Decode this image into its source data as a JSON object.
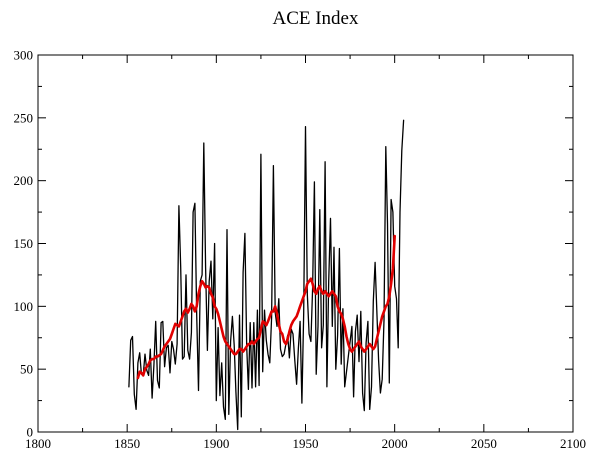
{
  "chart_data": {
    "type": "line",
    "title": "ACE Index",
    "xlabel": "",
    "ylabel": "",
    "xlim": [
      1800,
      2100
    ],
    "ylim": [
      0,
      300
    ],
    "x_ticks": [
      1800,
      1850,
      1900,
      1950,
      2000,
      2050,
      2100
    ],
    "y_ticks": [
      0,
      50,
      100,
      150,
      200,
      250,
      300
    ],
    "x_tick_labels": [
      "1800",
      "1850",
      "1900",
      "1950",
      "2000",
      "2050",
      "2100"
    ],
    "y_tick_labels": [
      "0",
      "50",
      "100",
      "150",
      "200",
      "250",
      "300"
    ],
    "grid": false,
    "legend": "none",
    "series": [
      {
        "color": "#000000",
        "x": [
          1851,
          1852,
          1853,
          1854,
          1855,
          1856,
          1857,
          1858,
          1859,
          1860,
          1861,
          1862,
          1863,
          1864,
          1865,
          1866,
          1867,
          1868,
          1869,
          1870,
          1871,
          1872,
          1873,
          1874,
          1875,
          1876,
          1877,
          1878,
          1879,
          1880,
          1881,
          1882,
          1883,
          1884,
          1885,
          1886,
          1887,
          1888,
          1889,
          1890,
          1891,
          1892,
          1893,
          1894,
          1895,
          1896,
          1897,
          1898,
          1899,
          1900,
          1901,
          1902,
          1903,
          1904,
          1905,
          1906,
          1907,
          1908,
          1909,
          1910,
          1911,
          1912,
          1913,
          1914,
          1915,
          1916,
          1917,
          1918,
          1919,
          1920,
          1921,
          1922,
          1923,
          1924,
          1925,
          1926,
          1927,
          1928,
          1929,
          1930,
          1931,
          1932,
          1933,
          1934,
          1935,
          1936,
          1937,
          1938,
          1939,
          1940,
          1941,
          1942,
          1943,
          1944,
          1945,
          1946,
          1947,
          1948,
          1949,
          1950,
          1951,
          1952,
          1953,
          1954,
          1955,
          1956,
          1957,
          1958,
          1959,
          1960,
          1961,
          1962,
          1963,
          1964,
          1965,
          1966,
          1967,
          1968,
          1969,
          1970,
          1971,
          1972,
          1973,
          1974,
          1975,
          1976,
          1977,
          1978,
          1979,
          1980,
          1981,
          1982,
          1983,
          1984,
          1985,
          1986,
          1987,
          1988,
          1989,
          1990,
          1991,
          1992,
          1993,
          1994,
          1995,
          1996,
          1997,
          1998,
          1999,
          2000,
          2001,
          2002,
          2003,
          2004,
          2005
        ],
        "values": [
          36,
          73,
          76,
          30,
          18,
          55,
          63,
          46,
          45,
          62,
          49,
          45,
          66,
          27,
          53,
          88,
          41,
          35,
          87,
          88,
          52,
          67,
          69,
          47,
          72,
          66,
          54,
          70,
          180,
          131,
          58,
          60,
          125,
          65,
          58,
          79,
          175,
          182,
          93,
          33,
          120,
          125,
          230,
          131,
          65,
          120,
          136,
          90,
          150,
          25,
          83,
          29,
          55,
          20,
          10,
          161,
          14,
          72,
          92,
          69,
          32,
          2,
          93,
          12,
          127,
          158,
          68,
          34,
          87,
          35,
          87,
          36,
          97,
          37,
          221,
          48,
          97,
          73,
          62,
          55,
          91,
          212,
          95,
          84,
          106,
          66,
          60,
          62,
          70,
          77,
          59,
          82,
          78,
          57,
          38,
          67,
          88,
          23,
          95,
          243,
          110,
          78,
          72,
          114,
          199,
          46,
          84,
          177,
          67,
          85,
          215,
          36,
          120,
          170,
          84,
          147,
          50,
          77,
          146,
          54,
          98,
          36,
          48,
          60,
          72,
          84,
          28,
          80,
          93,
          56,
          96,
          31,
          17,
          71,
          88,
          18,
          36,
          104,
          135,
          97,
          57,
          31,
          42,
          89,
          227,
          166,
          39,
          185,
          175,
          116,
          106,
          67,
          175,
          224,
          248
        ]
      },
      {
        "color": "#e00000",
        "x": [
          1856,
          1857,
          1858,
          1859,
          1860,
          1861,
          1862,
          1863,
          1864,
          1865,
          1866,
          1867,
          1868,
          1869,
          1870,
          1871,
          1872,
          1873,
          1874,
          1875,
          1876,
          1877,
          1878,
          1879,
          1880,
          1881,
          1882,
          1883,
          1884,
          1885,
          1886,
          1887,
          1888,
          1889,
          1890,
          1891,
          1892,
          1893,
          1894,
          1895,
          1896,
          1897,
          1898,
          1899,
          1900,
          1901,
          1902,
          1903,
          1904,
          1905,
          1906,
          1907,
          1908,
          1909,
          1910,
          1911,
          1912,
          1913,
          1914,
          1915,
          1916,
          1917,
          1918,
          1919,
          1920,
          1921,
          1922,
          1923,
          1924,
          1925,
          1926,
          1927,
          1928,
          1929,
          1930,
          1931,
          1932,
          1933,
          1934,
          1935,
          1936,
          1937,
          1938,
          1939,
          1940,
          1941,
          1942,
          1943,
          1944,
          1945,
          1946,
          1947,
          1948,
          1949,
          1950,
          1951,
          1952,
          1953,
          1954,
          1955,
          1956,
          1957,
          1958,
          1959,
          1960,
          1961,
          1962,
          1963,
          1964,
          1965,
          1966,
          1967,
          1968,
          1969,
          1970,
          1971,
          1972,
          1973,
          1974,
          1975,
          1976,
          1977,
          1978,
          1979,
          1980,
          1981,
          1982,
          1983,
          1984,
          1985,
          1986,
          1987,
          1988,
          1989,
          1990,
          1991,
          1992,
          1993,
          1994,
          1995,
          1996,
          1997,
          1998,
          1999,
          2000
        ],
        "values": [
          43,
          48,
          47,
          45,
          50,
          52,
          54,
          57,
          58,
          58,
          60,
          60,
          61,
          62,
          65,
          68,
          70,
          72,
          74,
          78,
          82,
          86,
          85,
          84,
          88,
          92,
          96,
          98,
          95,
          98,
          102,
          100,
          96,
          100,
          110,
          116,
          120,
          118,
          115,
          116,
          115,
          110,
          107,
          100,
          98,
          94,
          88,
          82,
          76,
          72,
          70,
          68,
          66,
          64,
          62,
          62,
          64,
          66,
          66,
          64,
          66,
          68,
          70,
          70,
          72,
          70,
          72,
          74,
          75,
          82,
          88,
          87,
          85,
          88,
          92,
          96,
          96,
          100,
          94,
          86,
          80,
          78,
          72,
          70,
          74,
          80,
          85,
          88,
          90,
          92,
          96,
          100,
          104,
          108,
          112,
          118,
          120,
          122,
          118,
          112,
          110,
          114,
          116,
          112,
          110,
          112,
          110,
          108,
          110,
          112,
          110,
          108,
          100,
          96,
          94,
          90,
          84,
          76,
          70,
          66,
          64,
          66,
          68,
          70,
          72,
          68,
          66,
          64,
          66,
          68,
          70,
          68,
          66,
          68,
          74,
          80,
          86,
          92,
          96,
          100,
          102,
          108,
          118,
          130,
          156
        ],
        "smooth": true
      }
    ]
  }
}
